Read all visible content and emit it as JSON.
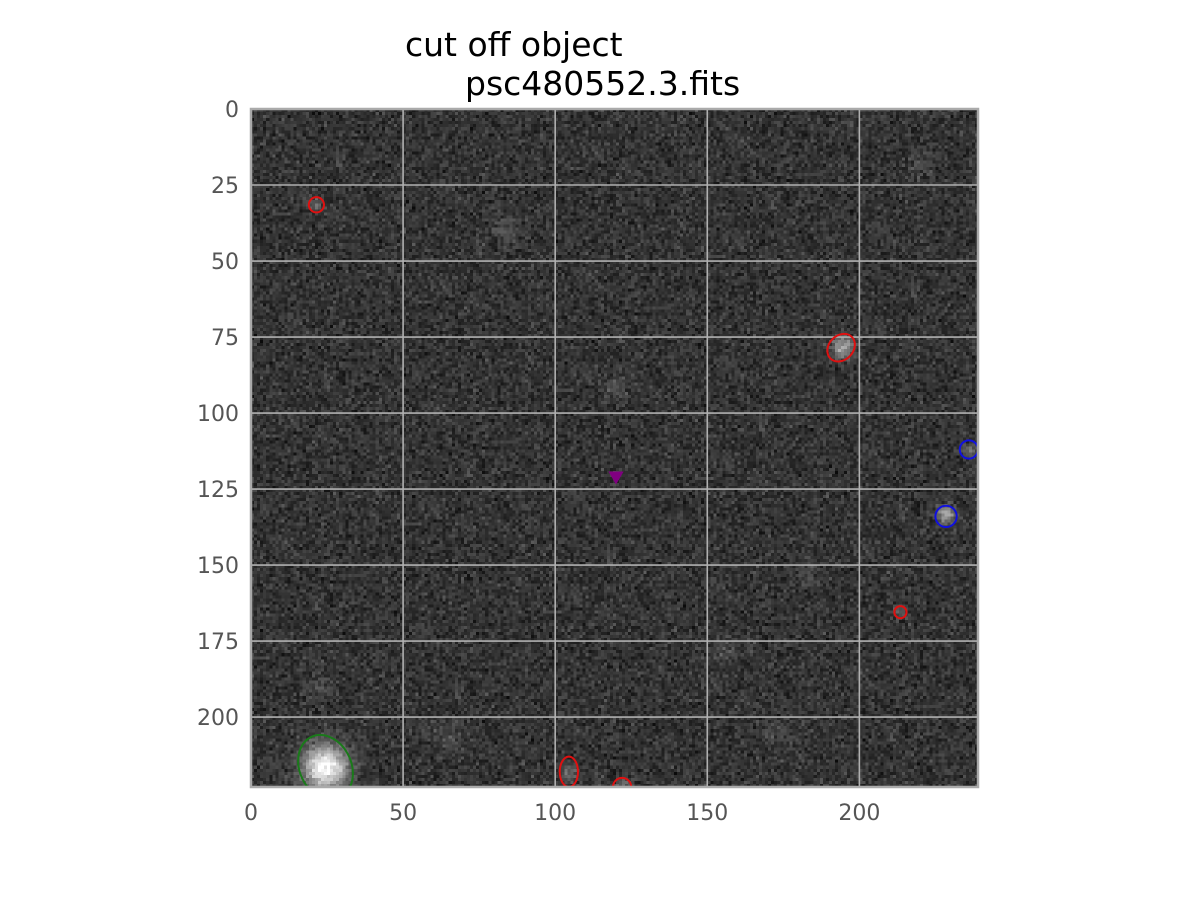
{
  "title": {
    "line1": "cut off object",
    "line2": "psc480552.3.fits"
  },
  "colors": {
    "background": "#ffffff",
    "image_base": "#3a3a3a",
    "grid": "#b0b0b0",
    "frame": "#aaaaaa",
    "tick_label": "#555555",
    "red": "#e01010",
    "blue": "#1010e0",
    "green": "#1a7a1a",
    "purple": "#800080"
  },
  "chart_data": {
    "type": "heatmap",
    "description_kind": "grayscale astronomical image with source markers",
    "xlim": [
      0,
      239
    ],
    "ylim": [
      223,
      0
    ],
    "x_ticks": [
      0,
      50,
      100,
      150,
      200
    ],
    "y_ticks": [
      0,
      25,
      50,
      75,
      100,
      125,
      150,
      175,
      200
    ],
    "grid": true,
    "markers": [
      {
        "kind": "ellipse",
        "color": "red",
        "x": 21.5,
        "y": 31.5,
        "rx": 2.5,
        "ry": 2.5,
        "angle": 0
      },
      {
        "kind": "ellipse",
        "color": "red",
        "x": 194,
        "y": 78.5,
        "rx": 4,
        "ry": 5,
        "angle": 45
      },
      {
        "kind": "ellipse",
        "color": "red",
        "x": 213.5,
        "y": 165.5,
        "rx": 2,
        "ry": 2,
        "angle": 0
      },
      {
        "kind": "ellipse",
        "color": "red",
        "x": 104.5,
        "y": 218,
        "rx": 3,
        "ry": 5,
        "angle": 0
      },
      {
        "kind": "ellipse",
        "color": "red",
        "x": 122,
        "y": 223,
        "rx": 3,
        "ry": 3,
        "angle": 0
      },
      {
        "kind": "ellipse",
        "color": "blue",
        "x": 236,
        "y": 112,
        "rx": 3,
        "ry": 3,
        "angle": 0
      },
      {
        "kind": "ellipse",
        "color": "blue",
        "x": 228.5,
        "y": 134,
        "rx": 3.5,
        "ry": 3.5,
        "angle": 0
      },
      {
        "kind": "ellipse",
        "color": "green",
        "x": 24.5,
        "y": 216.5,
        "rx": 8.5,
        "ry": 11,
        "angle": -25
      },
      {
        "kind": "triangle-down",
        "color": "purple",
        "x": 120,
        "y": 121,
        "size": 2.5
      }
    ],
    "sources": [
      {
        "x": 24,
        "y": 216,
        "brightness": 1.0,
        "spread": 5
      },
      {
        "x": 194,
        "y": 78,
        "brightness": 0.55,
        "spread": 2.5
      },
      {
        "x": 228,
        "y": 133,
        "brightness": 0.6,
        "spread": 2
      },
      {
        "x": 236,
        "y": 112,
        "brightness": 0.25,
        "spread": 2
      },
      {
        "x": 21,
        "y": 31,
        "brightness": 0.25,
        "spread": 1.5
      },
      {
        "x": 213,
        "y": 165,
        "brightness": 0.2,
        "spread": 1.5
      },
      {
        "x": 104,
        "y": 218,
        "brightness": 0.25,
        "spread": 2
      },
      {
        "x": 122,
        "y": 223,
        "brightness": 0.3,
        "spread": 2
      },
      {
        "x": 83,
        "y": 39,
        "brightness": 0.15,
        "spread": 3
      },
      {
        "x": 220,
        "y": 18,
        "brightness": 0.1,
        "spread": 3
      },
      {
        "x": 119,
        "y": 90,
        "brightness": 0.1,
        "spread": 3
      },
      {
        "x": 173,
        "y": 205,
        "brightness": 0.12,
        "spread": 3
      },
      {
        "x": 64,
        "y": 205,
        "brightness": 0.12,
        "spread": 3
      },
      {
        "x": 155,
        "y": 178,
        "brightness": 0.12,
        "spread": 3
      },
      {
        "x": 183,
        "y": 153,
        "brightness": 0.1,
        "spread": 3
      },
      {
        "x": 22,
        "y": 190,
        "brightness": 0.1,
        "spread": 3
      }
    ]
  }
}
